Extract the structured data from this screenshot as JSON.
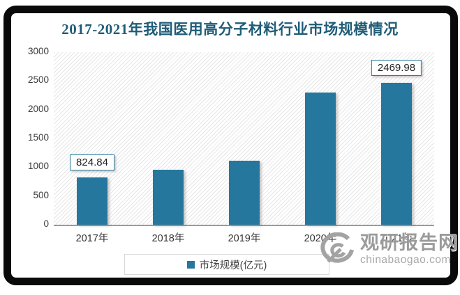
{
  "chart_data": {
    "type": "bar",
    "title": "2017-2021年我国医用高分子材料行业市场规模情况",
    "categories": [
      "2017年",
      "2018年",
      "2019年",
      "2020年",
      "2021年"
    ],
    "series": [
      {
        "name": "市场规模(亿元)",
        "values": [
          824.84,
          955,
          1110,
          2298,
          2469.98
        ]
      }
    ],
    "point_labels": [
      "824.84",
      null,
      null,
      null,
      "2469.98"
    ],
    "xlabel": "",
    "ylabel": "",
    "ylim": [
      0,
      3000
    ],
    "yticks": [
      0,
      500,
      1000,
      1500,
      2000,
      2500,
      3000
    ],
    "grid": false,
    "legend_position": "bottom",
    "plot_background": "diagonal-hatch"
  },
  "legend": {
    "label": "市场规模(亿元)"
  },
  "watermark": {
    "name": "观研报告网",
    "domain": "chinabaogao.com"
  },
  "colors": {
    "bar": "#26779d",
    "title": "#1f5c77",
    "label_box_border": "#2b7c9e",
    "axis_line": "#9b9b9b",
    "text": "#333333",
    "watermark": "#9b9b9b",
    "frame": "#0a0a0a"
  }
}
